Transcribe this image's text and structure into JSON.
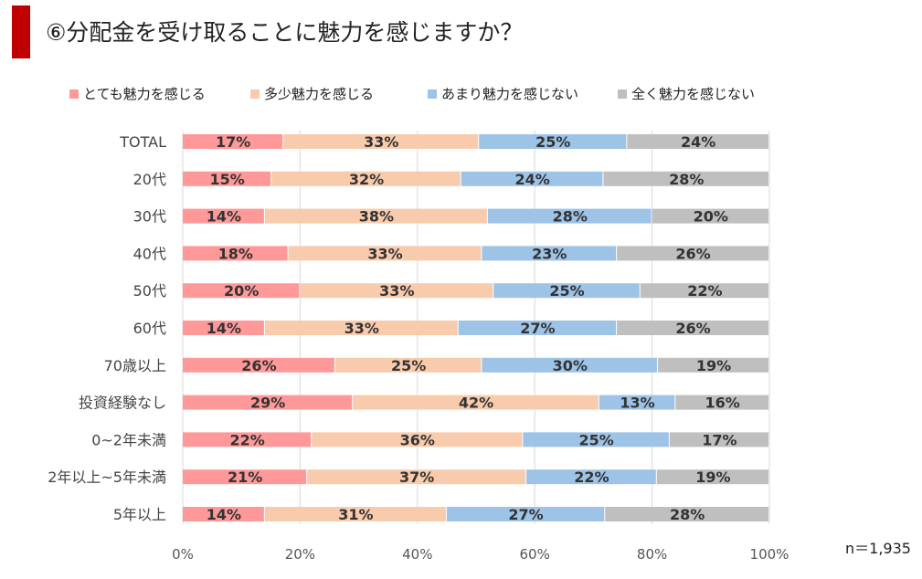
{
  "header": {
    "title": "⑥分配金を受け取ることに魅力を感じますか？"
  },
  "note": "n＝1,935",
  "chart_data": {
    "type": "bar",
    "orientation": "horizontal",
    "stacked": "percent",
    "categories": [
      "TOTAL",
      "20代",
      "30代",
      "40代",
      "50代",
      "60代",
      "70歳以上",
      "投資経験なし",
      "0~2年未満",
      "2年以上~5年未満",
      "5年以上"
    ],
    "series": [
      {
        "name": "とても魅力を感じる",
        "color": "#ff9999",
        "values": [
          17,
          15,
          14,
          18,
          20,
          14,
          26,
          29,
          22,
          21,
          14
        ]
      },
      {
        "name": "多少魅力を感じる",
        "color": "#f8cbad",
        "values": [
          33,
          32,
          38,
          33,
          33,
          33,
          25,
          42,
          36,
          37,
          31
        ]
      },
      {
        "name": "あまり魅力を感じない",
        "color": "#9dc3e6",
        "values": [
          25,
          24,
          28,
          23,
          25,
          27,
          30,
          13,
          25,
          22,
          27
        ]
      },
      {
        "name": "全く魅力を感じない",
        "color": "#bfbfbf",
        "values": [
          24,
          28,
          20,
          26,
          22,
          26,
          19,
          16,
          17,
          19,
          28
        ]
      }
    ],
    "label_format": "{v}%",
    "xlim": [
      0,
      100
    ],
    "x_ticks": [
      "0%",
      "20%",
      "40%",
      "60%",
      "80%",
      "100%"
    ],
    "grid": "vertical",
    "legend": "top"
  }
}
